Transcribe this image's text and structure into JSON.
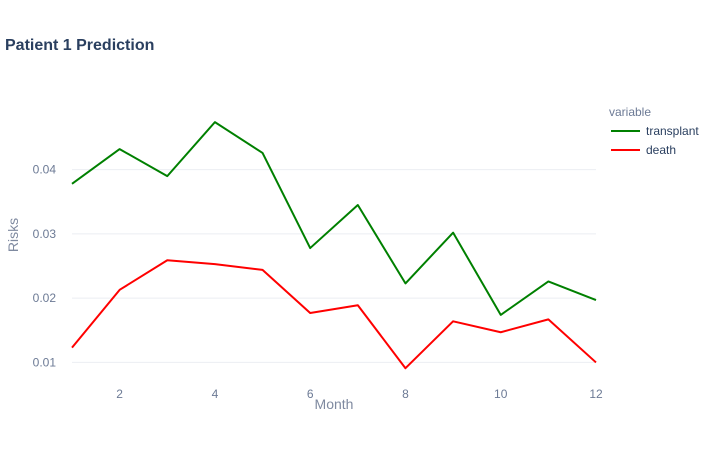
{
  "chart_data": {
    "type": "line",
    "title": "Patient 1 Prediction",
    "xlabel": "Month",
    "ylabel": "Risks",
    "x": [
      1,
      2,
      3,
      4,
      5,
      6,
      7,
      8,
      9,
      10,
      11,
      12
    ],
    "xticks": [
      2,
      4,
      6,
      8,
      10,
      12
    ],
    "yticks": [
      0.01,
      0.02,
      0.03,
      0.04
    ],
    "xlim": [
      1,
      12
    ],
    "ylim": [
      0.0082,
      0.0524
    ],
    "grid": true,
    "legend": {
      "title": "variable",
      "placement": "right"
    },
    "series": [
      {
        "name": "transplant",
        "color": "#008000",
        "values": [
          0.0378,
          0.0432,
          0.039,
          0.0474,
          0.0426,
          0.0278,
          0.0345,
          0.0223,
          0.0302,
          0.0174,
          0.0226,
          0.0197
        ]
      },
      {
        "name": "death",
        "color": "#ff0000",
        "values": [
          0.0123,
          0.0213,
          0.0259,
          0.0253,
          0.0244,
          0.0177,
          0.0189,
          0.0091,
          0.0164,
          0.0147,
          0.0167,
          0.01
        ]
      }
    ]
  }
}
